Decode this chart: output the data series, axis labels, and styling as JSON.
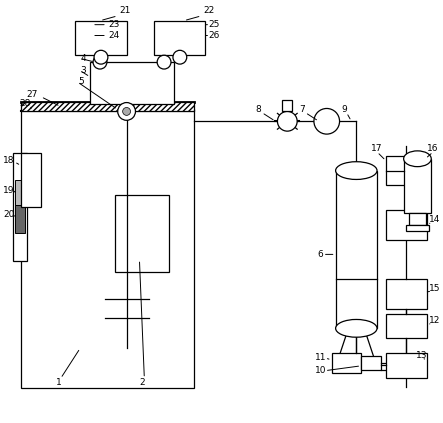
{
  "background_color": "#ffffff",
  "line_color": "#000000",
  "lw": 0.9
}
